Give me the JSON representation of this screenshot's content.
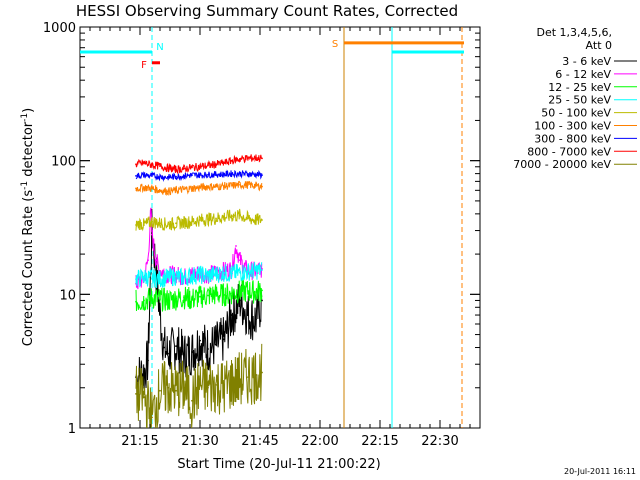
{
  "chart_data": {
    "type": "line",
    "title": "HESSI Observing Summary Count Rates, Corrected",
    "ylabel_main": "Corrected Count Rate (s",
    "ylabel_sup1": "-1",
    "ylabel_mid": " detector",
    "ylabel_sup2": "-1",
    "ylabel_end": ")",
    "xlabel": "Start Time (20-Jul-11 21:00:22)",
    "timestamp": "20-Jul-2011 16:11",
    "y_scale": "log",
    "ylim": [
      1,
      1000
    ],
    "xlim_minutes": [
      0,
      100
    ],
    "ytick_labels": [
      {
        "value": 1,
        "label": "1"
      },
      {
        "value": 10,
        "label": "10"
      },
      {
        "value": 100,
        "label": "100"
      },
      {
        "value": 1000,
        "label": "1000"
      }
    ],
    "xtick_labels": [
      {
        "minutes": 15,
        "label": "21:15"
      },
      {
        "minutes": 30,
        "label": "21:30"
      },
      {
        "minutes": 45,
        "label": "21:45"
      },
      {
        "minutes": 60,
        "label": "22:00"
      },
      {
        "minutes": 75,
        "label": "22:15"
      },
      {
        "minutes": 90,
        "label": "22:30"
      }
    ],
    "legend_header": [
      "Det 1,3,4,5,6,",
      "Att 0"
    ],
    "series": [
      {
        "name": "3 - 6 keV",
        "color": "#000000",
        "x": [
          14,
          15,
          16,
          17,
          18,
          20,
          21,
          22,
          24,
          26,
          28,
          30,
          32,
          34,
          36,
          38,
          40,
          42,
          44,
          45.5
        ],
        "y": [
          2.4,
          2.5,
          2.6,
          3.2,
          32,
          7,
          4,
          3.6,
          4.1,
          3.5,
          3.7,
          4.5,
          3.9,
          4.2,
          4.6,
          7,
          9,
          7,
          6.5,
          9
        ]
      },
      {
        "name": "6 - 12 keV",
        "color": "#ff00ff",
        "x": [
          14,
          16,
          17,
          17.7,
          18,
          19,
          20,
          22,
          24,
          26,
          28,
          30,
          32,
          34,
          36,
          38,
          39,
          40,
          41,
          42,
          44,
          45.5
        ],
        "y": [
          12,
          13,
          18,
          42,
          28,
          18,
          15,
          14,
          14,
          13.5,
          14,
          14.5,
          14,
          14.5,
          15,
          15.5,
          23,
          18,
          16,
          15,
          15,
          15.5
        ]
      },
      {
        "name": "12 - 25 keV",
        "color": "#00ff00",
        "x": [
          14,
          16,
          18,
          20,
          22,
          24,
          26,
          28,
          30,
          32,
          34,
          36,
          38,
          40,
          42,
          44,
          45.5
        ],
        "y": [
          8.8,
          9,
          9.4,
          9.2,
          9,
          9.3,
          9.5,
          9.2,
          9.6,
          9.8,
          10,
          9.9,
          10.2,
          10.5,
          10.6,
          10.4,
          10.7
        ]
      },
      {
        "name": "25 - 50 keV",
        "color": "#00ffff",
        "x": [
          14,
          16,
          18,
          20,
          22,
          24,
          26,
          28,
          30,
          32,
          34,
          36,
          38,
          40,
          42,
          44,
          45.5
        ],
        "y": [
          13,
          13.5,
          13.2,
          13,
          13.4,
          13.6,
          13.3,
          13.8,
          14,
          13.8,
          14.2,
          14.5,
          14.3,
          14.6,
          14.8,
          15,
          15.2
        ]
      },
      {
        "name": "50 - 100 keV",
        "color": "#bbbb00",
        "x": [
          14,
          15,
          16,
          18,
          20,
          22,
          24,
          26,
          28,
          30,
          32,
          34,
          36,
          38,
          40,
          42,
          44,
          45.5
        ],
        "y": [
          33,
          34,
          33,
          35,
          34,
          33.5,
          34,
          34.5,
          35,
          36,
          36.5,
          37,
          38,
          38.5,
          39,
          37,
          36,
          36
        ]
      },
      {
        "name": "100 - 300 keV",
        "color": "#ff8000",
        "x": [
          14,
          16,
          18,
          20,
          22,
          24,
          26,
          28,
          30,
          32,
          34,
          36,
          38,
          40,
          42,
          44,
          45.5
        ],
        "y": [
          62,
          63,
          62,
          60,
          59,
          60,
          61,
          62,
          63,
          64,
          64,
          64.5,
          65,
          66,
          66,
          65,
          64
        ]
      },
      {
        "name": "300 - 800 keV",
        "color": "#0000ff",
        "x": [
          14,
          16,
          18,
          20,
          22,
          24,
          26,
          28,
          30,
          32,
          34,
          36,
          38,
          40,
          42,
          44,
          45.5
        ],
        "y": [
          77,
          78,
          77,
          76,
          75,
          76,
          77,
          78,
          78,
          78.5,
          79,
          79,
          80,
          80,
          79.5,
          79,
          78
        ]
      },
      {
        "name": "800 - 7000 keV",
        "color": "#ff0000",
        "x": [
          14,
          16,
          18,
          20,
          22,
          24,
          26,
          28,
          30,
          32,
          34,
          36,
          38,
          40,
          42,
          44,
          45.5
        ],
        "y": [
          94,
          96,
          93,
          91,
          88,
          86,
          87,
          89,
          90,
          92,
          94,
          96,
          100,
          103,
          104,
          105,
          104
        ]
      },
      {
        "name": "7000 - 20000 keV",
        "color": "#808000",
        "x": [
          14,
          16,
          18,
          20,
          22,
          24,
          26,
          28,
          30,
          32,
          34,
          36,
          38,
          40,
          42,
          44,
          45.5
        ],
        "y": [
          1.8,
          1.7,
          1.2,
          1.9,
          2.0,
          1.9,
          2.0,
          1.6,
          2.1,
          2.0,
          2.1,
          2.0,
          2.2,
          2.3,
          2.4,
          2.5,
          2.6
        ]
      }
    ],
    "flags": [
      {
        "label": "N",
        "color": "#00ffff",
        "lines": [
          {
            "x1": -2,
            "x2": 18,
            "y": 650
          },
          {
            "x1": 78,
            "x2": 96,
            "y": 650
          }
        ]
      },
      {
        "label": "F",
        "color": "#ff0000",
        "lines": [
          {
            "x1": 18,
            "x2": 20,
            "y": 540
          }
        ]
      },
      {
        "label": "S",
        "color": "#ff8000",
        "lines": [
          {
            "x1": 66,
            "x2": 96,
            "y": 760
          }
        ]
      }
    ],
    "vlines": [
      {
        "minutes": 18,
        "color": "#00ffff",
        "style": "dashed"
      },
      {
        "minutes": 66,
        "color": "#cc8000",
        "style": "solid"
      },
      {
        "minutes": 78,
        "color": "#00ffff",
        "style": "solid"
      },
      {
        "minutes": 95.5,
        "color": "#ff8000",
        "style": "dashed"
      }
    ],
    "grid": false,
    "legend_position": "right"
  }
}
